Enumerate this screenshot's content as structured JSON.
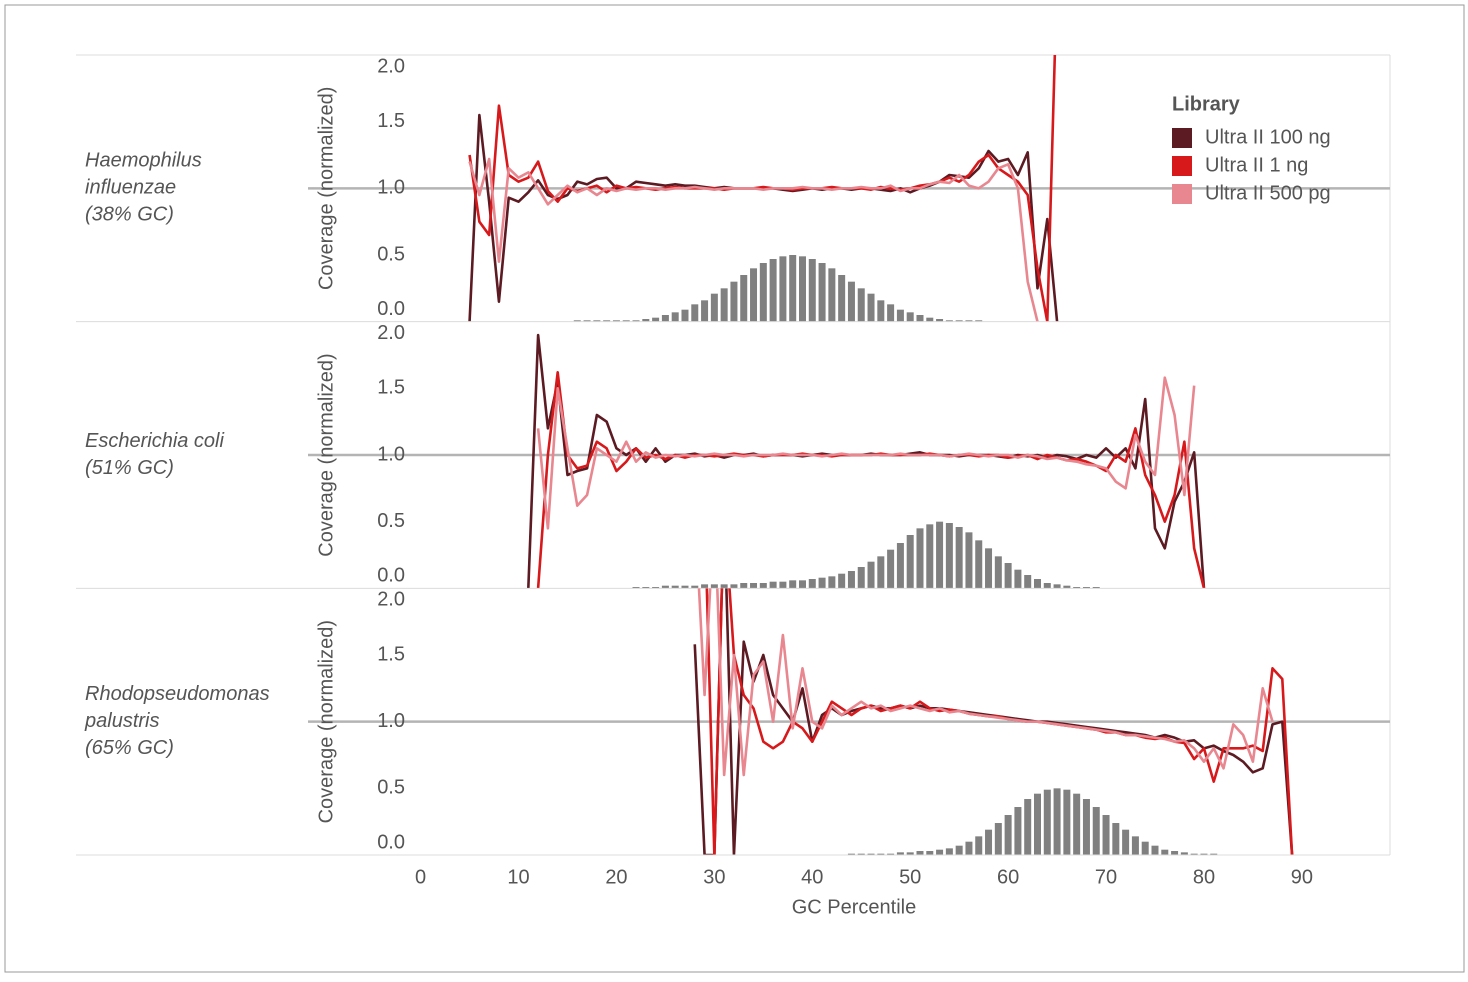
{
  "chart_data": [
    {
      "type": "line",
      "row_label": [
        "Haemophilus",
        "influenzae",
        "(38% GC)"
      ],
      "y_label": "Coverage (normalized)",
      "legend_title": "Library",
      "legend": "top-right",
      "reference_line": 1,
      "xlim": [
        -11.5,
        99
      ],
      "ylim": [
        0,
        2
      ],
      "yticks": [
        {
          "value": 0,
          "label": "0.0"
        },
        0.5,
        {
          "value": 1,
          "label": "1.0"
        },
        1.5,
        {
          "value": 2,
          "label": "2.0"
        }
      ],
      "x": [
        5,
        6,
        7,
        8,
        9,
        10,
        11,
        12,
        13,
        14,
        15,
        16,
        17,
        18,
        19,
        20,
        21,
        22,
        23,
        24,
        25,
        26,
        27,
        28,
        29,
        30,
        31,
        32,
        33,
        34,
        35,
        36,
        37,
        38,
        39,
        40,
        41,
        42,
        43,
        44,
        45,
        46,
        47,
        48,
        49,
        50,
        51,
        52,
        53,
        54,
        55,
        56,
        57,
        58,
        59,
        60,
        61,
        62,
        63,
        64,
        65
      ],
      "series": [
        {
          "name": "Ultra II 100 ng",
          "color": "#5c1a22",
          "values": [
            0,
            1.55,
            0.9,
            0.15,
            0.93,
            0.9,
            0.97,
            1.06,
            0.95,
            0.92,
            0.95,
            1.05,
            1.03,
            1.07,
            1.08,
            1.0,
            1.0,
            1.05,
            1.04,
            1.03,
            1.02,
            1.03,
            1.02,
            1.02,
            1.01,
            1.0,
            1.01,
            1.0,
            1.0,
            1.0,
            1.0,
            1.0,
            0.99,
            0.98,
            0.99,
            1.0,
            0.99,
            1.0,
            1.0,
            0.99,
            1.0,
            1.0,
            0.99,
            0.98,
            1.0,
            0.97,
            1.0,
            1.02,
            1.05,
            1.1,
            1.09,
            1.08,
            1.15,
            1.28,
            1.2,
            1.22,
            1.1,
            1.27,
            0.25,
            0.77,
            0
          ]
        },
        {
          "name": "Ultra II 1 ng",
          "color": "#d7191c",
          "values": [
            1.25,
            0.75,
            0.65,
            1.62,
            1.1,
            1.05,
            1.08,
            1.2,
            0.98,
            0.9,
            1.0,
            0.98,
            1.0,
            1.02,
            0.97,
            1.02,
            1.0,
            1.01,
            1.0,
            0.99,
            1.0,
            1.01,
            1.0,
            1.0,
            1.0,
            1.0,
            0.99,
            1.0,
            1.0,
            1.0,
            1.01,
            1.0,
            1.0,
            0.99,
            1.0,
            1.0,
            1.0,
            1.01,
            1.0,
            1.0,
            1.0,
            0.99,
            1.01,
            1.0,
            0.99,
            1.0,
            1.02,
            1.03,
            1.05,
            1.08,
            1.05,
            1.1,
            1.2,
            1.25,
            1.15,
            1.1,
            1.05,
            0.95,
            0.4,
            0,
            2.6
          ]
        },
        {
          "name": "Ultra II 500 pg",
          "color": "#e8878f",
          "values": [
            1.2,
            0.95,
            1.22,
            0.45,
            1.15,
            1.08,
            1.12,
            1.0,
            0.88,
            0.95,
            1.02,
            0.97,
            1.0,
            0.95,
            1.0,
            0.98,
            1.0,
            0.99,
            1.0,
            1.0,
            0.99,
            1.0,
            1.0,
            1.01,
            1.0,
            0.99,
            1.0,
            1.0,
            1.0,
            1.0,
            0.99,
            1.0,
            1.0,
            1.0,
            1.01,
            1.0,
            1.0,
            0.99,
            1.0,
            1.0,
            1.01,
            1.0,
            1.0,
            1.02,
            0.98,
            1.0,
            1.0,
            1.03,
            1.05,
            1.04,
            1.1,
            1.02,
            1.0,
            1.05,
            1.15,
            1.18,
            1.0,
            0.3,
            0,
            null,
            null
          ]
        }
      ],
      "histogram": {
        "color": "#808080",
        "x": [
          16,
          17,
          18,
          19,
          20,
          21,
          22,
          23,
          24,
          25,
          26,
          27,
          28,
          29,
          30,
          31,
          32,
          33,
          34,
          35,
          36,
          37,
          38,
          39,
          40,
          41,
          42,
          43,
          44,
          45,
          46,
          47,
          48,
          49,
          50,
          51,
          52,
          53,
          54,
          55,
          56,
          57
        ],
        "values": [
          0.01,
          0.01,
          0.01,
          0.01,
          0.01,
          0.01,
          0.01,
          0.02,
          0.03,
          0.05,
          0.07,
          0.09,
          0.13,
          0.16,
          0.21,
          0.25,
          0.3,
          0.35,
          0.4,
          0.44,
          0.47,
          0.49,
          0.5,
          0.49,
          0.47,
          0.44,
          0.4,
          0.35,
          0.3,
          0.25,
          0.21,
          0.16,
          0.13,
          0.09,
          0.07,
          0.05,
          0.03,
          0.02,
          0.01,
          0.01,
          0.01,
          0.01
        ]
      }
    },
    {
      "type": "line",
      "row_label": [
        "Escherichia coli",
        "(51% GC)"
      ],
      "y_label": "Coverage (normalized)",
      "reference_line": 1,
      "xlim": [
        -11.5,
        99
      ],
      "ylim": [
        0,
        2
      ],
      "yticks": [
        {
          "value": 0,
          "label": "0.0"
        },
        0.5,
        {
          "value": 1,
          "label": "1.0"
        },
        1.5,
        {
          "value": 2,
          "label": "2.0"
        }
      ],
      "x": [
        11,
        12,
        13,
        14,
        15,
        16,
        17,
        18,
        19,
        20,
        21,
        22,
        23,
        24,
        25,
        26,
        27,
        28,
        29,
        30,
        31,
        32,
        33,
        34,
        35,
        36,
        37,
        38,
        39,
        40,
        41,
        42,
        43,
        44,
        45,
        46,
        47,
        48,
        49,
        50,
        51,
        52,
        53,
        54,
        55,
        56,
        57,
        58,
        59,
        60,
        61,
        62,
        63,
        64,
        65,
        66,
        67,
        68,
        69,
        70,
        71,
        72,
        73,
        74,
        75,
        76,
        77,
        78,
        79,
        80
      ],
      "series": [
        {
          "color": "#5c1a22",
          "values": [
            0,
            1.9,
            1.2,
            1.55,
            0.85,
            0.88,
            0.9,
            1.3,
            1.25,
            1.05,
            1.0,
            1.05,
            0.95,
            1.05,
            0.95,
            1.0,
            1.0,
            1.01,
            0.99,
            1.0,
            0.98,
            1.0,
            1.0,
            1.01,
            0.99,
            1.0,
            1.0,
            1.0,
            0.99,
            1.0,
            1.01,
            1.0,
            1.0,
            1.0,
            1.0,
            1.01,
            1.0,
            1.0,
            1.0,
            1.01,
            1.02,
            1.0,
            1.0,
            1.0,
            0.99,
            1.0,
            1.0,
            1.0,
            0.99,
            0.98,
            1.0,
            0.99,
            1.0,
            0.98,
            1.0,
            0.99,
            0.97,
            1.0,
            0.98,
            1.05,
            0.98,
            1.05,
            0.9,
            1.42,
            0.45,
            0.3,
            0.65,
            0.8,
            1.02,
            0
          ]
        },
        {
          "color": "#d7191c",
          "values": [
            null,
            0,
            1.0,
            1.62,
            1.0,
            0.9,
            0.92,
            1.1,
            1.05,
            0.88,
            0.95,
            1.05,
            0.98,
            1.0,
            0.97,
            1.0,
            0.98,
            1.0,
            1.0,
            0.99,
            1.0,
            1.01,
            1.0,
            1.0,
            0.99,
            1.0,
            1.0,
            1.0,
            1.01,
            1.0,
            1.0,
            0.99,
            1.0,
            1.0,
            1.0,
            1.0,
            1.01,
            1.0,
            1.0,
            1.0,
            1.0,
            1.01,
            1.0,
            0.99,
            1.0,
            1.0,
            0.99,
            1.0,
            1.0,
            0.98,
            0.99,
            1.0,
            0.97,
            1.0,
            0.98,
            0.96,
            0.97,
            0.95,
            0.92,
            0.88,
            1.0,
            0.95,
            1.2,
            0.85,
            0.7,
            0.5,
            0.7,
            1.1,
            0.3,
            0
          ]
        },
        {
          "color": "#e8878f",
          "values": [
            null,
            1.2,
            0.45,
            1.5,
            1.05,
            0.62,
            0.7,
            1.05,
            1.0,
            0.95,
            1.1,
            0.95,
            1.02,
            0.98,
            1.0,
            0.99,
            1.0,
            0.99,
            1.0,
            1.01,
            1.0,
            1.0,
            0.99,
            1.0,
            1.0,
            1.0,
            1.01,
            1.0,
            1.0,
            1.0,
            0.99,
            1.0,
            1.01,
            1.0,
            1.0,
            1.0,
            1.0,
            1.0,
            1.01,
            1.0,
            1.0,
            1.0,
            1.0,
            0.99,
            1.0,
            1.01,
            1.0,
            0.99,
            1.0,
            1.0,
            0.98,
            1.0,
            0.99,
            0.97,
            0.98,
            0.96,
            0.95,
            0.93,
            0.92,
            0.9,
            0.8,
            0.75,
            1.15,
            0.95,
            0.85,
            1.58,
            1.3,
            0.7,
            1.52,
            null
          ]
        }
      ],
      "histogram": {
        "color": "#808080",
        "x": [
          22,
          23,
          24,
          25,
          26,
          27,
          28,
          29,
          30,
          31,
          32,
          33,
          34,
          35,
          36,
          37,
          38,
          39,
          40,
          41,
          42,
          43,
          44,
          45,
          46,
          47,
          48,
          49,
          50,
          51,
          52,
          53,
          54,
          55,
          56,
          57,
          58,
          59,
          60,
          61,
          62,
          63,
          64,
          65,
          66,
          67,
          68,
          69
        ],
        "values": [
          0.01,
          0.01,
          0.01,
          0.02,
          0.02,
          0.02,
          0.02,
          0.03,
          0.03,
          0.03,
          0.03,
          0.04,
          0.04,
          0.04,
          0.05,
          0.05,
          0.06,
          0.06,
          0.07,
          0.08,
          0.09,
          0.11,
          0.13,
          0.16,
          0.2,
          0.24,
          0.29,
          0.34,
          0.4,
          0.45,
          0.48,
          0.5,
          0.49,
          0.46,
          0.42,
          0.36,
          0.3,
          0.24,
          0.19,
          0.14,
          0.1,
          0.07,
          0.04,
          0.03,
          0.02,
          0.01,
          0.01,
          0.01
        ]
      }
    },
    {
      "type": "line",
      "row_label": [
        "Rhodopseudomonas",
        "palustris",
        "(65% GC)"
      ],
      "y_label": "Coverage (normalized)",
      "x_label": "GC Percentile",
      "reference_line": 1,
      "xlim": [
        -11.5,
        99
      ],
      "ylim": [
        0,
        2
      ],
      "xticks": [
        0,
        10,
        20,
        30,
        40,
        50,
        60,
        70,
        80,
        90
      ],
      "yticks": [
        {
          "value": 0,
          "label": "0.0"
        },
        0.5,
        {
          "value": 1,
          "label": "1.0"
        },
        1.5,
        {
          "value": 2,
          "label": "2.0"
        }
      ],
      "x": [
        28,
        29,
        30,
        31,
        32,
        33,
        34,
        35,
        36,
        37,
        38,
        39,
        40,
        41,
        42,
        43,
        44,
        45,
        46,
        47,
        48,
        49,
        50,
        51,
        52,
        53,
        54,
        55,
        56,
        57,
        58,
        59,
        60,
        61,
        62,
        63,
        64,
        65,
        66,
        67,
        68,
        69,
        70,
        71,
        72,
        73,
        74,
        75,
        76,
        77,
        78,
        79,
        80,
        81,
        82,
        83,
        84,
        85,
        86,
        87,
        88,
        89
      ],
      "series": [
        {
          "color": "#5c1a22",
          "values": [
            1.58,
            0,
            0,
            2.6,
            0,
            1.6,
            1.3,
            1.5,
            1.2,
            1.1,
            1.0,
            1.25,
            0.85,
            1.05,
            1.1,
            1.05,
            1.08,
            1.1,
            1.12,
            1.1,
            1.1,
            1.12,
            1.1,
            1.12,
            1.1,
            1.1,
            1.09,
            1.08,
            1.07,
            1.06,
            1.05,
            1.04,
            1.03,
            1.02,
            1.01,
            1.0,
            1.0,
            0.99,
            0.98,
            0.97,
            0.96,
            0.95,
            0.94,
            0.93,
            0.92,
            0.91,
            0.9,
            0.88,
            0.9,
            0.88,
            0.85,
            0.86,
            0.8,
            0.82,
            0.78,
            0.75,
            0.7,
            0.62,
            0.65,
            0.98,
            1.0,
            0
          ]
        },
        {
          "color": "#d7191c",
          "values": [
            null,
            2.6,
            0,
            2.6,
            1.5,
            1.2,
            1.1,
            0.85,
            0.8,
            0.85,
            1.0,
            0.95,
            0.85,
            1.0,
            1.15,
            1.1,
            1.05,
            1.1,
            1.12,
            1.08,
            1.1,
            1.12,
            1.1,
            1.15,
            1.1,
            1.08,
            1.09,
            1.08,
            1.06,
            1.05,
            1.04,
            1.04,
            1.02,
            1.01,
            1.0,
            1.0,
            0.99,
            0.98,
            0.97,
            0.96,
            0.95,
            0.94,
            0.92,
            0.92,
            0.9,
            0.9,
            0.88,
            0.87,
            0.88,
            0.85,
            0.84,
            0.72,
            0.8,
            0.55,
            0.8,
            0.8,
            0.8,
            0.82,
            0.78,
            1.4,
            1.32,
            0
          ]
        },
        {
          "color": "#e8878f",
          "values": [
            2.6,
            1.2,
            2.6,
            0.6,
            1.5,
            0.6,
            1.35,
            1.45,
            1.0,
            1.65,
            0.95,
            1.4,
            1.0,
            0.95,
            1.12,
            1.05,
            1.1,
            1.15,
            1.1,
            1.12,
            1.08,
            1.1,
            1.12,
            1.1,
            1.08,
            1.1,
            1.07,
            1.08,
            1.06,
            1.05,
            1.04,
            1.03,
            1.02,
            1.01,
            1.0,
            1.0,
            0.99,
            0.98,
            0.97,
            0.96,
            0.95,
            0.94,
            0.93,
            0.92,
            0.9,
            0.9,
            0.89,
            0.88,
            0.87,
            0.85,
            0.86,
            0.8,
            0.7,
            0.8,
            0.65,
            0.98,
            0.9,
            0.7,
            1.25,
            1.0,
            null,
            null
          ]
        }
      ],
      "histogram": {
        "color": "#808080",
        "x": [
          44,
          45,
          46,
          47,
          48,
          49,
          50,
          51,
          52,
          53,
          54,
          55,
          56,
          57,
          58,
          59,
          60,
          61,
          62,
          63,
          64,
          65,
          66,
          67,
          68,
          69,
          70,
          71,
          72,
          73,
          74,
          75,
          76,
          77,
          78,
          79,
          80,
          81
        ],
        "values": [
          0.01,
          0.01,
          0.01,
          0.01,
          0.01,
          0.02,
          0.02,
          0.03,
          0.03,
          0.04,
          0.05,
          0.07,
          0.1,
          0.14,
          0.19,
          0.24,
          0.3,
          0.36,
          0.42,
          0.46,
          0.49,
          0.5,
          0.49,
          0.46,
          0.42,
          0.36,
          0.3,
          0.24,
          0.19,
          0.14,
          0.1,
          0.07,
          0.04,
          0.03,
          0.02,
          0.01,
          0.01,
          0.01
        ]
      }
    }
  ]
}
